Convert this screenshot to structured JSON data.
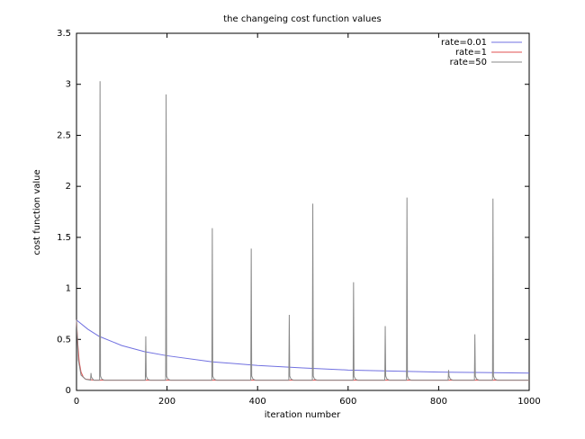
{
  "chart_data": {
    "type": "line",
    "title": "the changeing cost function values",
    "x_label": "iteration number",
    "y_label": "cost function value",
    "xlim": [
      0,
      1000
    ],
    "xticks": [
      0,
      200,
      400,
      600,
      800,
      1000
    ],
    "ylim": [
      0,
      3.5
    ],
    "yticks": [
      0,
      0.5,
      1,
      1.5,
      2,
      2.5,
      3,
      3.5
    ],
    "legend": "top-right",
    "series": [
      {
        "name": "rate=0.01",
        "color": "#7070e0",
        "x": [
          0,
          25,
          50,
          100,
          150,
          200,
          300,
          400,
          500,
          600,
          700,
          800,
          900,
          1000
        ],
        "values": [
          0.69,
          0.6,
          0.53,
          0.44,
          0.38,
          0.34,
          0.28,
          0.245,
          0.22,
          0.2,
          0.19,
          0.18,
          0.175,
          0.17
        ]
      },
      {
        "name": "rate=1",
        "color": "#e05050",
        "x": [
          0,
          3,
          6,
          10,
          15,
          20,
          40,
          1000
        ],
        "values": [
          0.69,
          0.45,
          0.28,
          0.18,
          0.13,
          0.11,
          0.1,
          0.1
        ]
      },
      {
        "name": "rate=50",
        "color": "#888888",
        "x": [
          0,
          4,
          10,
          20,
          31,
          32,
          33,
          38,
          51,
          52,
          53,
          56,
          62,
          152,
          153,
          154,
          157,
          163,
          197,
          198,
          199,
          202,
          208,
          299,
          300,
          301,
          304,
          310,
          385,
          386,
          387,
          390,
          396,
          469,
          470,
          471,
          474,
          480,
          521,
          522,
          523,
          526,
          532,
          611,
          612,
          613,
          616,
          622,
          681,
          682,
          683,
          686,
          692,
          729,
          730,
          731,
          734,
          740,
          821,
          822,
          823,
          826,
          832,
          879,
          880,
          881,
          884,
          890,
          919,
          920,
          921,
          924,
          930,
          1000
        ],
        "values": [
          0.69,
          0.3,
          0.15,
          0.11,
          0.1,
          0.17,
          0.13,
          0.1,
          0.1,
          3.03,
          0.14,
          0.11,
          0.1,
          0.1,
          0.53,
          0.14,
          0.11,
          0.1,
          0.1,
          2.9,
          0.14,
          0.11,
          0.1,
          0.1,
          1.59,
          0.14,
          0.11,
          0.1,
          0.1,
          1.39,
          0.14,
          0.11,
          0.1,
          0.1,
          0.74,
          0.14,
          0.11,
          0.1,
          0.1,
          1.83,
          0.14,
          0.11,
          0.1,
          0.1,
          1.06,
          0.14,
          0.11,
          0.1,
          0.1,
          0.63,
          0.14,
          0.11,
          0.1,
          0.1,
          1.89,
          0.14,
          0.11,
          0.1,
          0.1,
          0.2,
          0.14,
          0.11,
          0.1,
          0.1,
          0.55,
          0.14,
          0.11,
          0.1,
          0.1,
          1.88,
          0.14,
          0.11,
          0.1,
          0.1
        ]
      }
    ]
  }
}
